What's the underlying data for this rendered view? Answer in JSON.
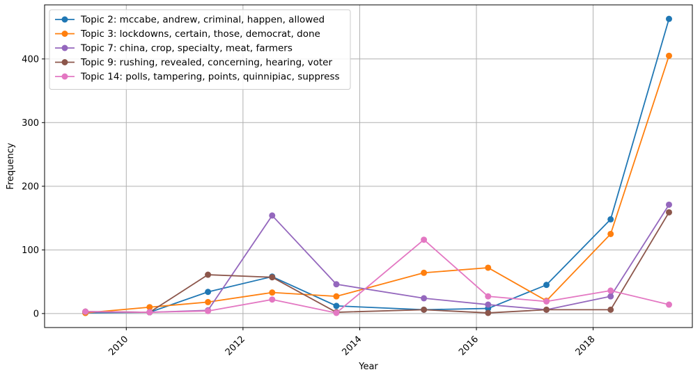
{
  "chart_data": {
    "type": "line",
    "title": "",
    "xlabel": "Year",
    "ylabel": "Frequency",
    "xlim": [
      2008.6,
      2019.7
    ],
    "ylim": [
      -22,
      485
    ],
    "x_ticks": [
      2010,
      2012,
      2014,
      2016,
      2018
    ],
    "x_tick_labels": [
      "2010",
      "2012",
      "2014",
      "2016",
      "2018"
    ],
    "y_ticks": [
      0,
      100,
      200,
      300,
      400
    ],
    "y_tick_labels": [
      "0",
      "100",
      "200",
      "300",
      "400"
    ],
    "grid": true,
    "legend_position": "top-left",
    "x": [
      2009.3,
      2010.4,
      2011.4,
      2012.5,
      2013.6,
      2015.1,
      2016.2,
      2017.2,
      2018.3,
      2019.3
    ],
    "series": [
      {
        "name": "Topic 2: mccabe, andrew, criminal, happen, allowed",
        "color": "#1f77b4",
        "values": [
          1,
          2,
          34,
          58,
          12,
          6,
          8,
          45,
          148,
          463
        ]
      },
      {
        "name": "Topic 3: lockdowns, certain, those, democrat, done",
        "color": "#ff7f0e",
        "values": [
          1,
          10,
          18,
          33,
          27,
          64,
          72,
          20,
          125,
          405
        ]
      },
      {
        "name": "Topic 7: china, crop, specialty, meat, farmers",
        "color": "#9467bd",
        "values": [
          3,
          2,
          5,
          154,
          46,
          24,
          14,
          6,
          27,
          171
        ]
      },
      {
        "name": "Topic 9: rushing, revealed, concerning, hearing, voter",
        "color": "#8c564b",
        "values": [
          3,
          2,
          61,
          57,
          2,
          6,
          1,
          6,
          6,
          159
        ]
      },
      {
        "name": "Topic 14: polls, tampering, points, quinnipiac, suppress",
        "color": "#e377c2",
        "values": [
          3,
          2,
          4,
          22,
          1,
          116,
          27,
          19,
          36,
          14
        ]
      }
    ]
  }
}
